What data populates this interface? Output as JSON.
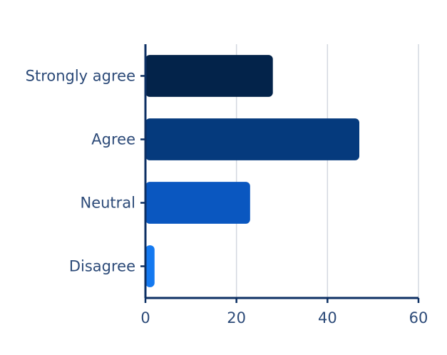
{
  "chart_data": {
    "type": "bar",
    "orientation": "horizontal",
    "categories": [
      "Strongly agree",
      "Agree",
      "Neutral",
      "Disagree"
    ],
    "values": [
      28,
      47,
      23,
      2
    ],
    "xlim": [
      0,
      60
    ],
    "xticks": [
      "0",
      "20",
      "40",
      "60"
    ],
    "grid": true,
    "colors": [
      "#03234a",
      "#053a7d",
      "#0a57c0",
      "#1479f0"
    ],
    "axis_color": "#0c2f63"
  }
}
